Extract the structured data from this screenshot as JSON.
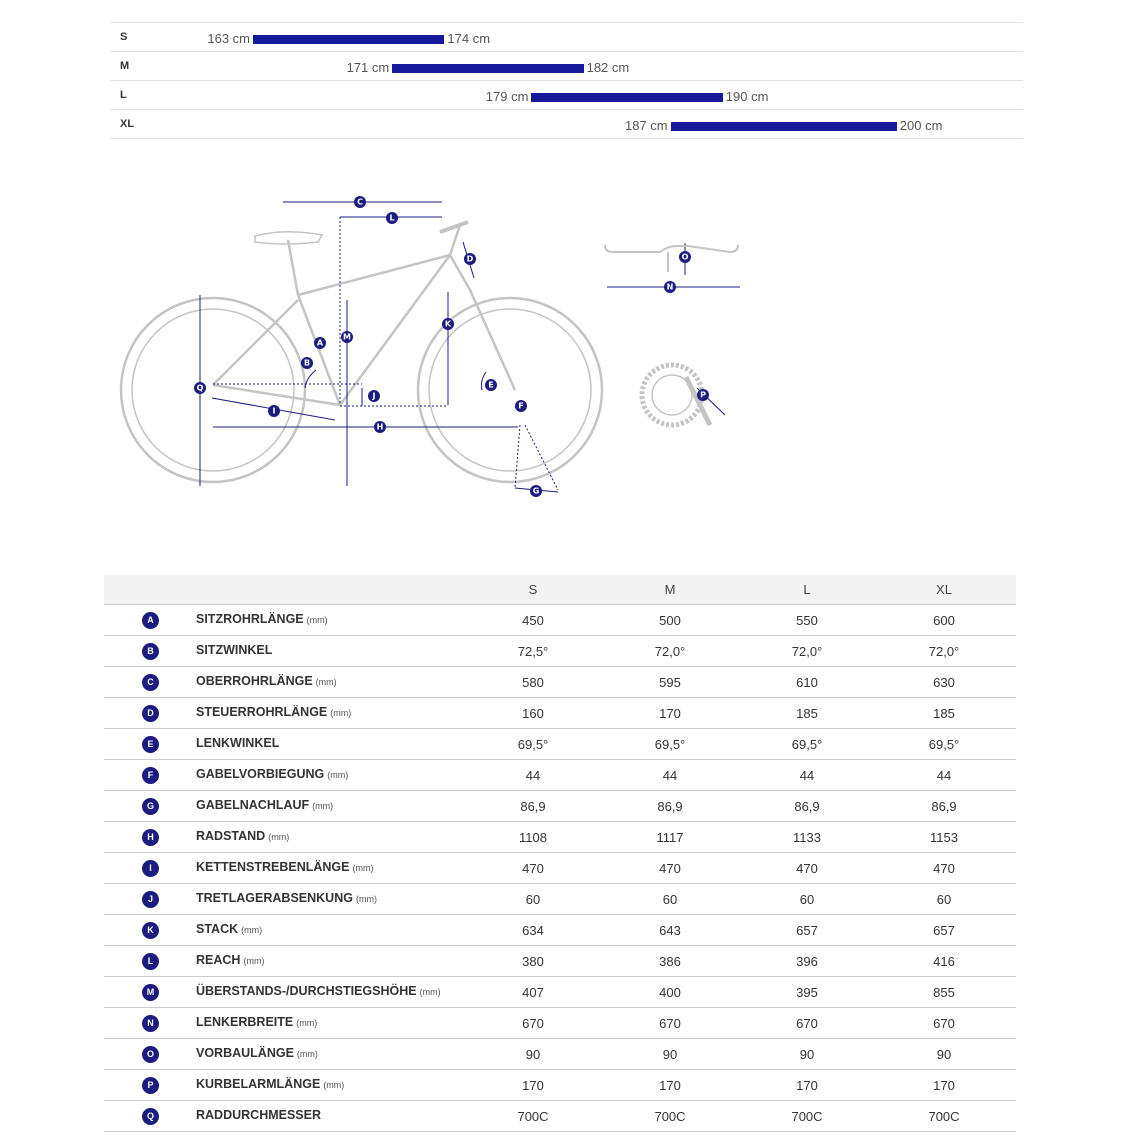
{
  "size_chart": {
    "rows": [
      {
        "size": "S",
        "min": {
          "value": 163,
          "label": "163 cm"
        },
        "max": {
          "value": 174,
          "label": "174 cm"
        }
      },
      {
        "size": "M",
        "min": {
          "value": 171,
          "label": "171 cm"
        },
        "max": {
          "value": 182,
          "label": "182 cm"
        }
      },
      {
        "size": "L",
        "min": {
          "value": 179,
          "label": "179 cm"
        },
        "max": {
          "value": 190,
          "label": "190 cm"
        }
      },
      {
        "size": "XL",
        "min": {
          "value": 187,
          "label": "187 cm"
        },
        "max": {
          "value": 200,
          "label": "200 cm"
        }
      }
    ]
  },
  "table": {
    "columns": [
      "S",
      "M",
      "L",
      "XL"
    ],
    "rows": [
      {
        "letter": "A",
        "name": "SITZROHRLÄNGE",
        "unit": "(mm)",
        "values": [
          "450",
          "500",
          "550",
          "600"
        ]
      },
      {
        "letter": "B",
        "name": "SITZWINKEL",
        "values": [
          "72,5°",
          "72,0°",
          "72,0°",
          "72,0°"
        ]
      },
      {
        "letter": "C",
        "name": "OBERROHRLÄNGE",
        "unit": "(mm)",
        "values": [
          "580",
          "595",
          "610",
          "630"
        ]
      },
      {
        "letter": "D",
        "name": "STEUERROHRLÄNGE",
        "unit": "(mm)",
        "values": [
          "160",
          "170",
          "185",
          "185"
        ]
      },
      {
        "letter": "E",
        "name": "LENKWINKEL",
        "values": [
          "69,5°",
          "69,5°",
          "69,5°",
          "69,5°"
        ]
      },
      {
        "letter": "F",
        "name": "GABELVORBIEGUNG",
        "unit": "(mm)",
        "values": [
          "44",
          "44",
          "44",
          "44"
        ]
      },
      {
        "letter": "G",
        "name": "GABELNACHLAUF",
        "unit": "(mm)",
        "values": [
          "86,9",
          "86,9",
          "86,9",
          "86,9"
        ]
      },
      {
        "letter": "H",
        "name": "RADSTAND",
        "unit": "(mm)",
        "values": [
          "1108",
          "1117",
          "1133",
          "1153"
        ]
      },
      {
        "letter": "I",
        "name": "KETTENSTREBENLÄNGE",
        "unit": "(mm)",
        "values": [
          "470",
          "470",
          "470",
          "470"
        ]
      },
      {
        "letter": "J",
        "name": "TRETLAGERABSENKUNG",
        "unit": "(mm)",
        "values": [
          "60",
          "60",
          "60",
          "60"
        ]
      },
      {
        "letter": "K",
        "name": "STACK",
        "unit": "(mm)",
        "values": [
          "634",
          "643",
          "657",
          "657"
        ]
      },
      {
        "letter": "L",
        "name": "REACH",
        "unit": "(mm)",
        "values": [
          "380",
          "386",
          "396",
          "416"
        ]
      },
      {
        "letter": "M",
        "name": "ÜBERSTANDS-/DURCHSTIEGSHÖHE",
        "unit": "(mm)",
        "values": [
          "407",
          "400",
          "395",
          "855"
        ]
      },
      {
        "letter": "N",
        "name": "LENKERBREITE",
        "unit": "(mm)",
        "values": [
          "670",
          "670",
          "670",
          "670"
        ]
      },
      {
        "letter": "O",
        "name": "VORBAULÄNGE",
        "unit": "(mm)",
        "values": [
          "90",
          "90",
          "90",
          "90"
        ]
      },
      {
        "letter": "P",
        "name": "KURBELARMLÄNGE",
        "unit": "(mm)",
        "values": [
          "170",
          "170",
          "170",
          "170"
        ]
      },
      {
        "letter": "Q",
        "name": "RADDURCHMESSER",
        "values": [
          "700C",
          "700C",
          "700C",
          "700C"
        ]
      }
    ]
  }
}
